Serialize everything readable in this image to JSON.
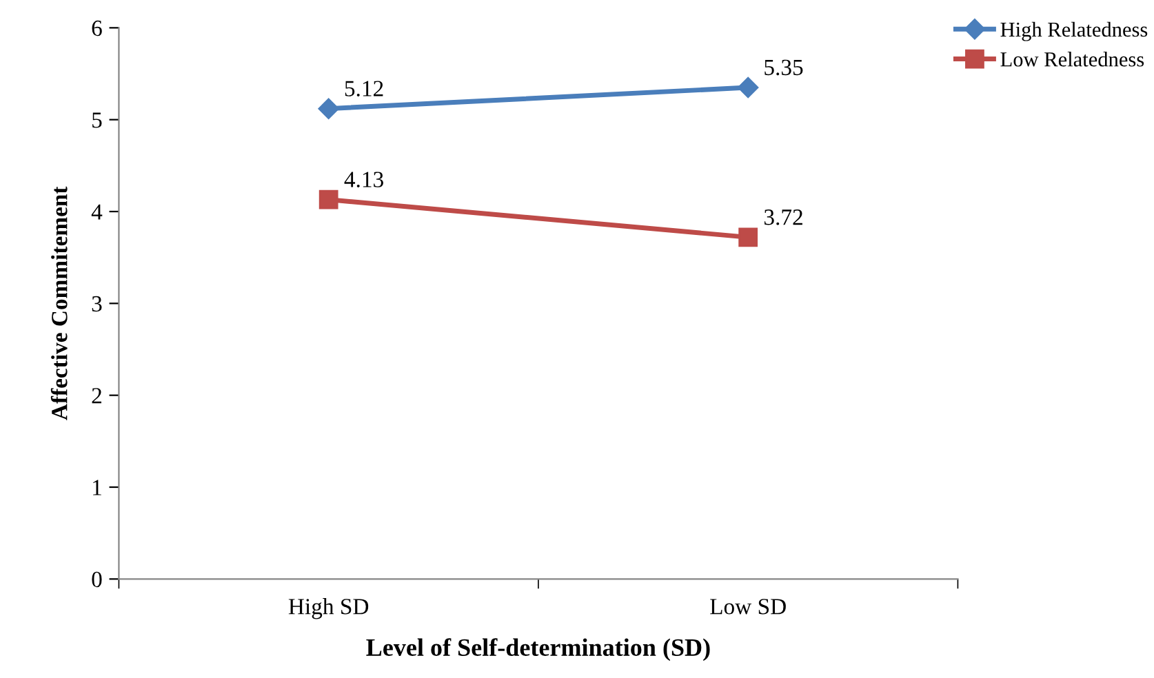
{
  "chart_data": {
    "type": "line",
    "xlabel": "Level of Self-determination (SD)",
    "ylabel": "Affective Commitement",
    "categories": [
      "High SD",
      "Low SD"
    ],
    "series": [
      {
        "name": "High Relatedness",
        "color": "#4a7ebb",
        "values": [
          5.12,
          5.35
        ],
        "marker": "diamond"
      },
      {
        "name": "Low Relatedness",
        "color": "#be4b48",
        "values": [
          4.13,
          3.72
        ],
        "marker": "square"
      }
    ],
    "ylim": [
      0,
      6
    ],
    "yticks": [
      0,
      1,
      2,
      3,
      4,
      5,
      6
    ],
    "data_labels": true,
    "legend": "top right",
    "grid": false,
    "line_style": "solid"
  }
}
